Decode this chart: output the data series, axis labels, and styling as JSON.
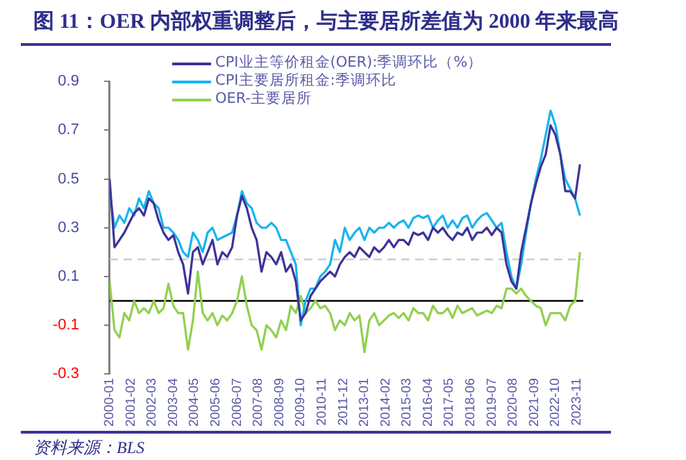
{
  "chart_data": {
    "type": "line",
    "title": "图 11：OER 内部权重调整后，与主要居所差值为 2000 年来最高",
    "x": [
      "2000-01",
      "2000-04",
      "2000-07",
      "2000-10",
      "2001-01",
      "2001-04",
      "2001-07",
      "2001-10",
      "2002-01",
      "2002-04",
      "2002-07",
      "2002-10",
      "2003-01",
      "2003-04",
      "2003-07",
      "2003-10",
      "2004-01",
      "2004-04",
      "2004-07",
      "2004-10",
      "2005-01",
      "2005-04",
      "2005-07",
      "2005-10",
      "2006-01",
      "2006-04",
      "2006-07",
      "2006-10",
      "2007-01",
      "2007-04",
      "2007-07",
      "2007-10",
      "2008-01",
      "2008-04",
      "2008-07",
      "2008-10",
      "2009-01",
      "2009-04",
      "2009-07",
      "2009-10",
      "2010-01",
      "2010-04",
      "2010-07",
      "2010-10",
      "2011-01",
      "2011-04",
      "2011-07",
      "2011-10",
      "2012-01",
      "2012-04",
      "2012-07",
      "2012-10",
      "2013-01",
      "2013-04",
      "2013-07",
      "2013-10",
      "2014-01",
      "2014-04",
      "2014-07",
      "2014-10",
      "2015-01",
      "2015-04",
      "2015-07",
      "2015-10",
      "2016-01",
      "2016-04",
      "2016-07",
      "2016-10",
      "2017-01",
      "2017-04",
      "2017-07",
      "2017-10",
      "2018-01",
      "2018-04",
      "2018-07",
      "2018-10",
      "2019-01",
      "2019-04",
      "2019-07",
      "2019-10",
      "2020-01",
      "2020-04",
      "2020-07",
      "2020-10",
      "2021-01",
      "2021-04",
      "2021-07",
      "2021-10",
      "2022-01",
      "2022-04",
      "2022-07",
      "2022-10",
      "2023-01",
      "2023-04",
      "2023-07",
      "2023-10",
      "2024-01"
    ],
    "series": [
      {
        "name": "CPI业主等价租金(OER):季调环比（%）",
        "color": "#3d3399",
        "values": [
          0.5,
          0.22,
          0.25,
          0.28,
          0.32,
          0.36,
          0.38,
          0.35,
          0.42,
          0.4,
          0.33,
          0.28,
          0.25,
          0.27,
          0.2,
          0.15,
          0.03,
          0.2,
          0.22,
          0.15,
          0.2,
          0.25,
          0.15,
          0.2,
          0.18,
          0.22,
          0.35,
          0.43,
          0.38,
          0.3,
          0.25,
          0.12,
          0.2,
          0.18,
          0.15,
          0.2,
          0.12,
          0.15,
          0.08,
          -0.08,
          -0.05,
          0.02,
          0.05,
          0.08,
          0.1,
          0.12,
          0.1,
          0.15,
          0.18,
          0.2,
          0.18,
          0.22,
          0.2,
          0.18,
          0.22,
          0.2,
          0.22,
          0.25,
          0.22,
          0.25,
          0.25,
          0.23,
          0.28,
          0.27,
          0.28,
          0.25,
          0.3,
          0.28,
          0.3,
          0.27,
          0.25,
          0.28,
          0.27,
          0.3,
          0.25,
          0.28,
          0.28,
          0.3,
          0.27,
          0.3,
          0.28,
          0.15,
          0.08,
          0.05,
          0.2,
          0.3,
          0.4,
          0.48,
          0.55,
          0.6,
          0.72,
          0.68,
          0.6,
          0.45,
          0.45,
          0.42,
          0.56
        ]
      },
      {
        "name": "CPI主要居所租金:季调环比",
        "color": "#19b4ee",
        "values": [
          0.45,
          0.3,
          0.35,
          0.32,
          0.38,
          0.35,
          0.42,
          0.38,
          0.45,
          0.4,
          0.38,
          0.3,
          0.3,
          0.28,
          0.25,
          0.2,
          0.18,
          0.28,
          0.25,
          0.2,
          0.28,
          0.3,
          0.25,
          0.26,
          0.27,
          0.28,
          0.35,
          0.45,
          0.4,
          0.38,
          0.32,
          0.3,
          0.3,
          0.32,
          0.3,
          0.25,
          0.25,
          0.2,
          0.15,
          -0.1,
          0.0,
          0.05,
          0.05,
          0.1,
          0.12,
          0.15,
          0.25,
          0.2,
          0.3,
          0.25,
          0.28,
          0.3,
          0.25,
          0.3,
          0.28,
          0.3,
          0.3,
          0.32,
          0.3,
          0.32,
          0.33,
          0.3,
          0.34,
          0.35,
          0.34,
          0.35,
          0.3,
          0.33,
          0.35,
          0.3,
          0.33,
          0.3,
          0.34,
          0.35,
          0.3,
          0.33,
          0.35,
          0.36,
          0.33,
          0.3,
          0.32,
          0.2,
          0.1,
          0.05,
          0.15,
          0.28,
          0.4,
          0.5,
          0.58,
          0.68,
          0.78,
          0.72,
          0.6,
          0.5,
          0.46,
          0.42,
          0.35
        ]
      },
      {
        "name": "OER-主要居所",
        "color": "#92d050",
        "values": [
          0.08,
          -0.12,
          -0.15,
          -0.05,
          -0.08,
          0.0,
          -0.05,
          -0.03,
          -0.05,
          0.0,
          -0.05,
          -0.03,
          0.07,
          -0.02,
          -0.05,
          -0.05,
          -0.2,
          -0.08,
          0.12,
          -0.05,
          -0.08,
          -0.05,
          -0.1,
          -0.06,
          -0.08,
          -0.05,
          0.0,
          0.1,
          -0.02,
          -0.1,
          -0.12,
          -0.2,
          -0.1,
          -0.12,
          -0.15,
          -0.08,
          -0.12,
          -0.02,
          -0.05,
          0.02,
          -0.05,
          -0.03,
          0.0,
          -0.03,
          -0.02,
          -0.05,
          -0.12,
          -0.08,
          -0.1,
          -0.05,
          -0.08,
          -0.06,
          -0.21,
          -0.08,
          -0.05,
          -0.1,
          -0.08,
          -0.06,
          -0.05,
          -0.07,
          -0.05,
          -0.08,
          -0.03,
          -0.05,
          -0.05,
          -0.08,
          -0.02,
          -0.05,
          -0.05,
          -0.03,
          -0.07,
          -0.02,
          -0.05,
          -0.04,
          -0.03,
          -0.06,
          -0.05,
          -0.04,
          -0.05,
          -0.02,
          -0.03,
          0.05,
          0.05,
          0.03,
          0.05,
          0.02,
          0.0,
          -0.02,
          -0.03,
          -0.1,
          -0.05,
          -0.05,
          -0.05,
          -0.08,
          -0.02,
          0.0,
          0.2
        ]
      }
    ],
    "xlim": [
      "2000-01",
      "2024-03"
    ],
    "xticks": [
      "2000-01",
      "2001-02",
      "2002-03",
      "2003-04",
      "2004-05",
      "2005-06",
      "2006-07",
      "2007-08",
      "2008-09",
      "2009-10",
      "2010-11",
      "2011-12",
      "2013-01",
      "2014-02",
      "2015-03",
      "2016-04",
      "2017-05",
      "2018-06",
      "2019-07",
      "2020-08",
      "2021-09",
      "2022-10",
      "2023-11"
    ],
    "ylim": [
      -0.3,
      0.9
    ],
    "yticks": [
      -0.3,
      -0.1,
      0.1,
      0.3,
      0.5,
      0.7,
      0.9
    ],
    "ref_lines": [
      {
        "axis": "y",
        "value": 0,
        "color": "#000000",
        "line_style": "solid"
      },
      {
        "axis": "y",
        "value": 0.17,
        "color": "#c8c8c8",
        "line_style": "dashed"
      }
    ],
    "grid": false,
    "legend": "top",
    "marker": "none",
    "line_style": "solid",
    "annotations": [
      "资料来源：BLS"
    ]
  }
}
